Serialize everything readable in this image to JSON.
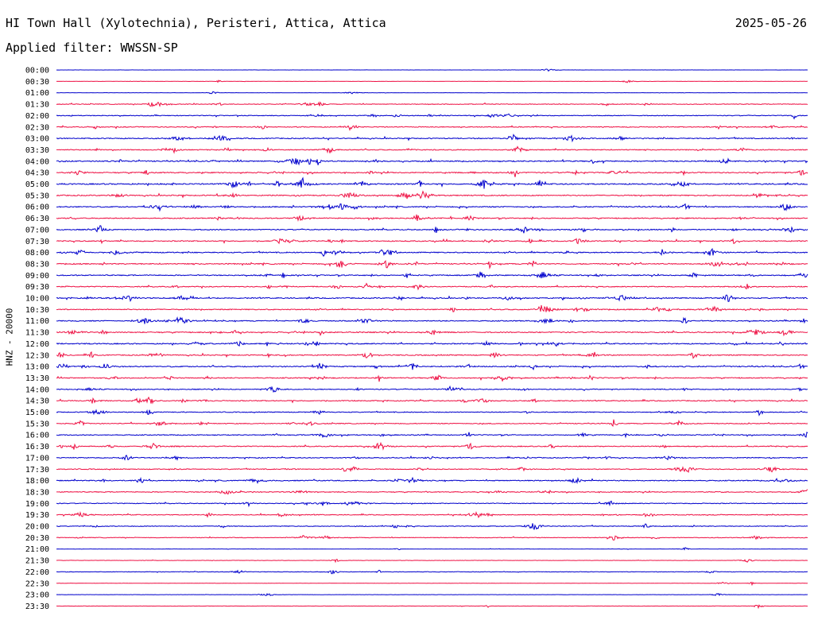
{
  "header": {
    "station": "HI Town Hall (Xylotechnia), Peristeri, Attica, Attica",
    "date": "2025-05-26",
    "filter": "Applied filter: WWSSN-SP"
  },
  "colors": {
    "even_row": "#0000cc",
    "odd_row": "#ee1144"
  },
  "chart_data": {
    "type": "line",
    "title": "HI Town Hall (Xylotechnia), Peristeri, Attica, Attica",
    "ylabel": "HNZ - 20000",
    "ytick_labels": [
      "00:00",
      "00:30",
      "01:00",
      "01:30",
      "02:00",
      "02:30",
      "03:00",
      "03:30",
      "04:00",
      "04:30",
      "05:00",
      "05:30",
      "06:00",
      "06:30",
      "07:00",
      "07:30",
      "08:00",
      "08:30",
      "09:00",
      "09:30",
      "10:00",
      "10:30",
      "11:00",
      "11:30",
      "12:00",
      "12:30",
      "13:00",
      "13:30",
      "14:00",
      "14:30",
      "15:00",
      "15:30",
      "16:00",
      "16:30",
      "17:00",
      "17:30",
      "18:00",
      "18:30",
      "19:00",
      "19:30",
      "20:00",
      "20:30",
      "21:00",
      "21:30",
      "22:00",
      "22:30",
      "23:00",
      "23:30"
    ],
    "trace_activity": [
      0.1,
      0.15,
      0.2,
      0.5,
      0.55,
      0.6,
      0.7,
      0.65,
      0.8,
      0.75,
      0.85,
      0.75,
      0.75,
      0.7,
      0.7,
      0.7,
      0.75,
      0.75,
      0.7,
      0.65,
      0.75,
      0.7,
      0.7,
      0.75,
      0.75,
      0.7,
      0.75,
      0.7,
      0.6,
      0.65,
      0.6,
      0.6,
      0.6,
      0.65,
      0.6,
      0.6,
      0.7,
      0.6,
      0.55,
      0.55,
      0.5,
      0.45,
      0.2,
      0.2,
      0.35,
      0.2,
      0.15,
      0.2
    ],
    "grid": false
  }
}
